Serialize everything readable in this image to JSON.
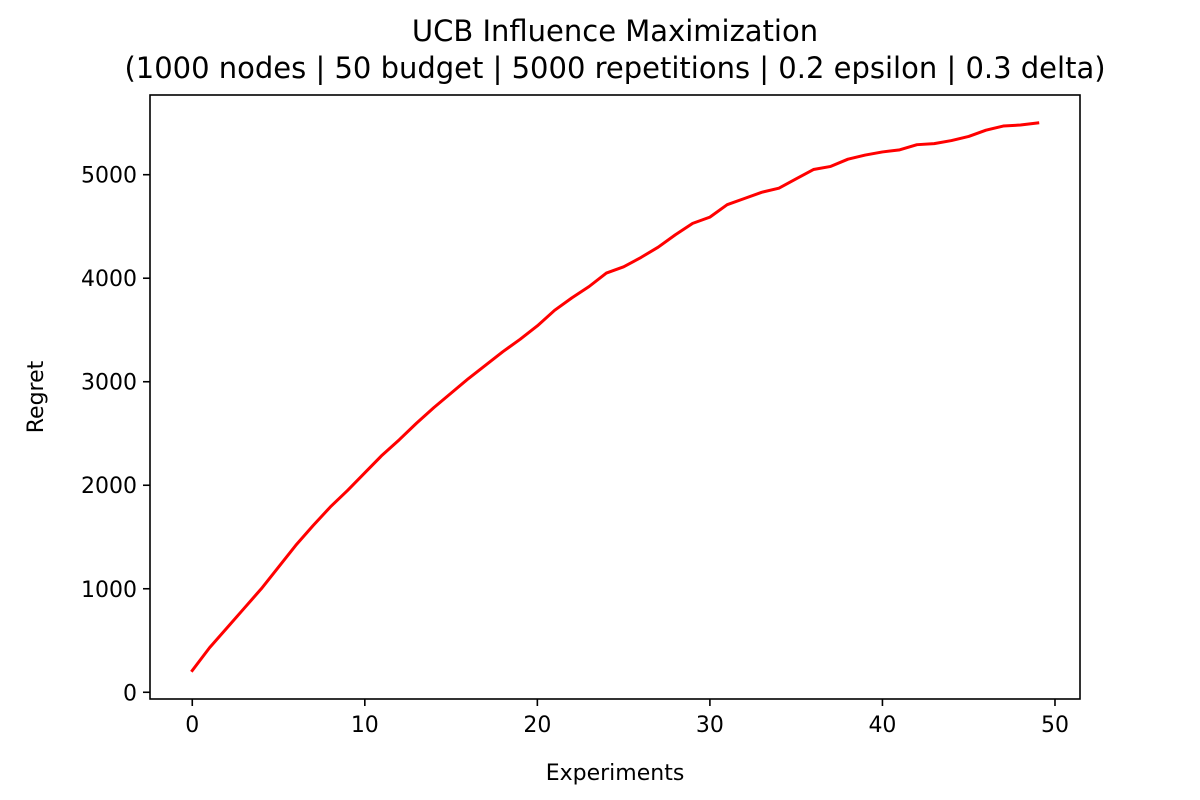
{
  "chart_data": {
    "type": "line",
    "title": "UCB Influence Maximization",
    "subtitle": "(1000 nodes | 50 budget | 5000 repetitions | 0.2 epsilon | 0.3 delta)",
    "xlabel": "Experiments",
    "ylabel": "Regret",
    "xlim": [
      -2.45,
      51.45
    ],
    "ylim": [
      -65,
      5770
    ],
    "xticks": [
      0,
      10,
      20,
      30,
      40,
      50
    ],
    "yticks": [
      0,
      1000,
      2000,
      3000,
      4000,
      5000
    ],
    "grid": false,
    "series": [
      {
        "color": "#ff0000",
        "x": [
          0,
          1,
          2,
          3,
          4,
          5,
          6,
          7,
          8,
          9,
          10,
          11,
          12,
          13,
          14,
          15,
          16,
          17,
          18,
          19,
          20,
          21,
          22,
          23,
          24,
          25,
          26,
          27,
          28,
          29,
          30,
          31,
          32,
          33,
          34,
          35,
          36,
          37,
          38,
          39,
          40,
          41,
          42,
          43,
          44,
          45,
          46,
          47,
          48,
          49
        ],
        "y": [
          210,
          430,
          620,
          810,
          1000,
          1210,
          1420,
          1610,
          1790,
          1950,
          2120,
          2290,
          2440,
          2600,
          2750,
          2890,
          3030,
          3160,
          3290,
          3410,
          3540,
          3690,
          3810,
          3920,
          4050,
          4110,
          4200,
          4300,
          4420,
          4530,
          4590,
          4710,
          4770,
          4830,
          4870,
          4960,
          5050,
          5080,
          5150,
          5190,
          5220,
          5240,
          5290,
          5300,
          5330,
          5370,
          5430,
          5470,
          5480,
          5500
        ]
      }
    ]
  }
}
